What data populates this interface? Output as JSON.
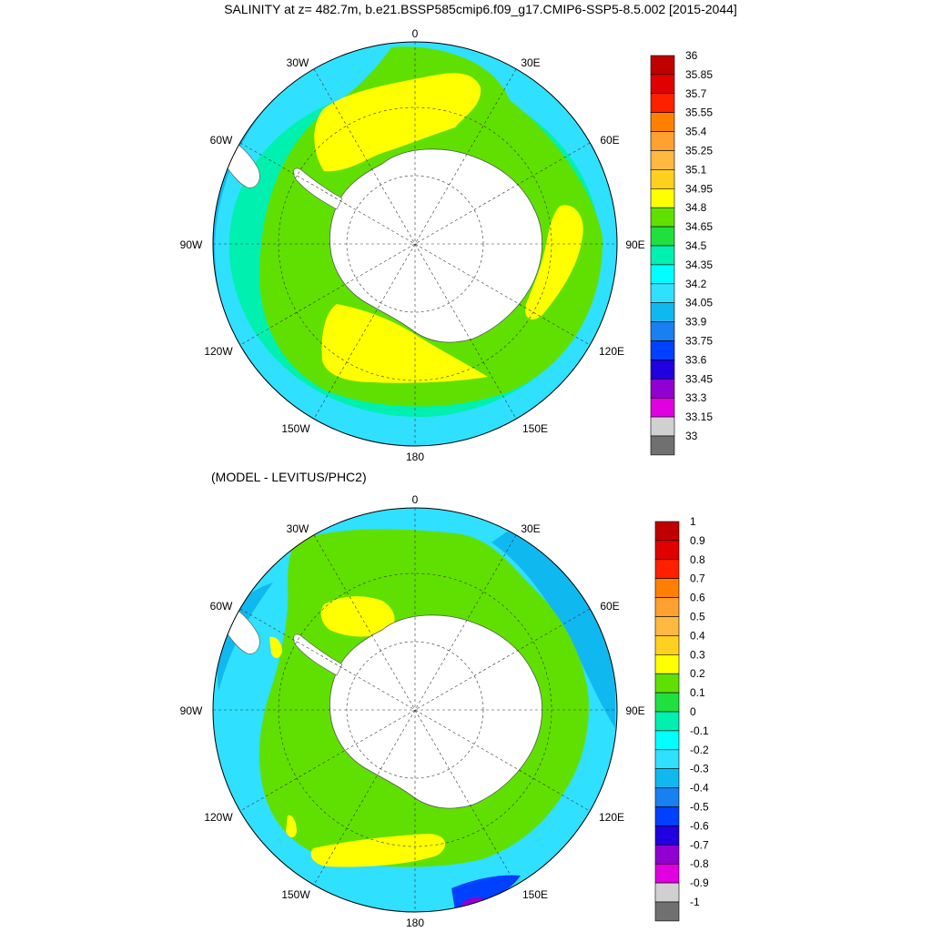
{
  "title": "SALINITY at z= 482.7m, b.e21.BSSP585cmip6.f09_g17.CMIP6-SSP5-8.5.002 [2015-2044]",
  "subtitle": "(MODEL - LEVITUS/PHC2)",
  "panels": [
    {
      "id": "salinity",
      "lon_labels": [
        "0",
        "30E",
        "60E",
        "90E",
        "120E",
        "150E",
        "180",
        "150W",
        "120W",
        "90W",
        "60W",
        "30W"
      ],
      "colorbar": {
        "labels": [
          "36",
          "35.85",
          "35.7",
          "35.55",
          "35.4",
          "35.25",
          "35.1",
          "34.95",
          "34.8",
          "34.65",
          "34.5",
          "34.35",
          "34.2",
          "34.05",
          "33.9",
          "33.75",
          "33.6",
          "33.45",
          "33.3",
          "33.15",
          "33"
        ],
        "colors": [
          "#c00000",
          "#e00000",
          "#ff2000",
          "#ff8000",
          "#ffa030",
          "#ffb840",
          "#ffd020",
          "#ffff00",
          "#60e000",
          "#20e040",
          "#00f0b0",
          "#00ffff",
          "#30e0ff",
          "#10b8f0",
          "#1880f0",
          "#0040ff",
          "#2000e0",
          "#9000d0",
          "#e000e0",
          "#d0d0d0",
          "#707070"
        ]
      }
    },
    {
      "id": "difference",
      "lon_labels": [
        "0",
        "30E",
        "60E",
        "90E",
        "120E",
        "150E",
        "180",
        "150W",
        "120W",
        "90W",
        "60W",
        "30W"
      ],
      "colorbar": {
        "labels": [
          "1",
          "0.9",
          "0.8",
          "0.7",
          "0.6",
          "0.5",
          "0.4",
          "0.3",
          "0.2",
          "0.1",
          "0",
          "-0.1",
          "-0.2",
          "-0.3",
          "-0.4",
          "-0.5",
          "-0.6",
          "-0.7",
          "-0.8",
          "-0.9",
          "-1"
        ],
        "colors": [
          "#c00000",
          "#e00000",
          "#ff2000",
          "#ff8000",
          "#ffa030",
          "#ffb840",
          "#ffd020",
          "#ffff00",
          "#60e000",
          "#20e040",
          "#00f0b0",
          "#00ffff",
          "#30e0ff",
          "#10b8f0",
          "#1880f0",
          "#0040ff",
          "#2000e0",
          "#9000d0",
          "#e000e0",
          "#d0d0d0",
          "#707070"
        ]
      }
    }
  ]
}
